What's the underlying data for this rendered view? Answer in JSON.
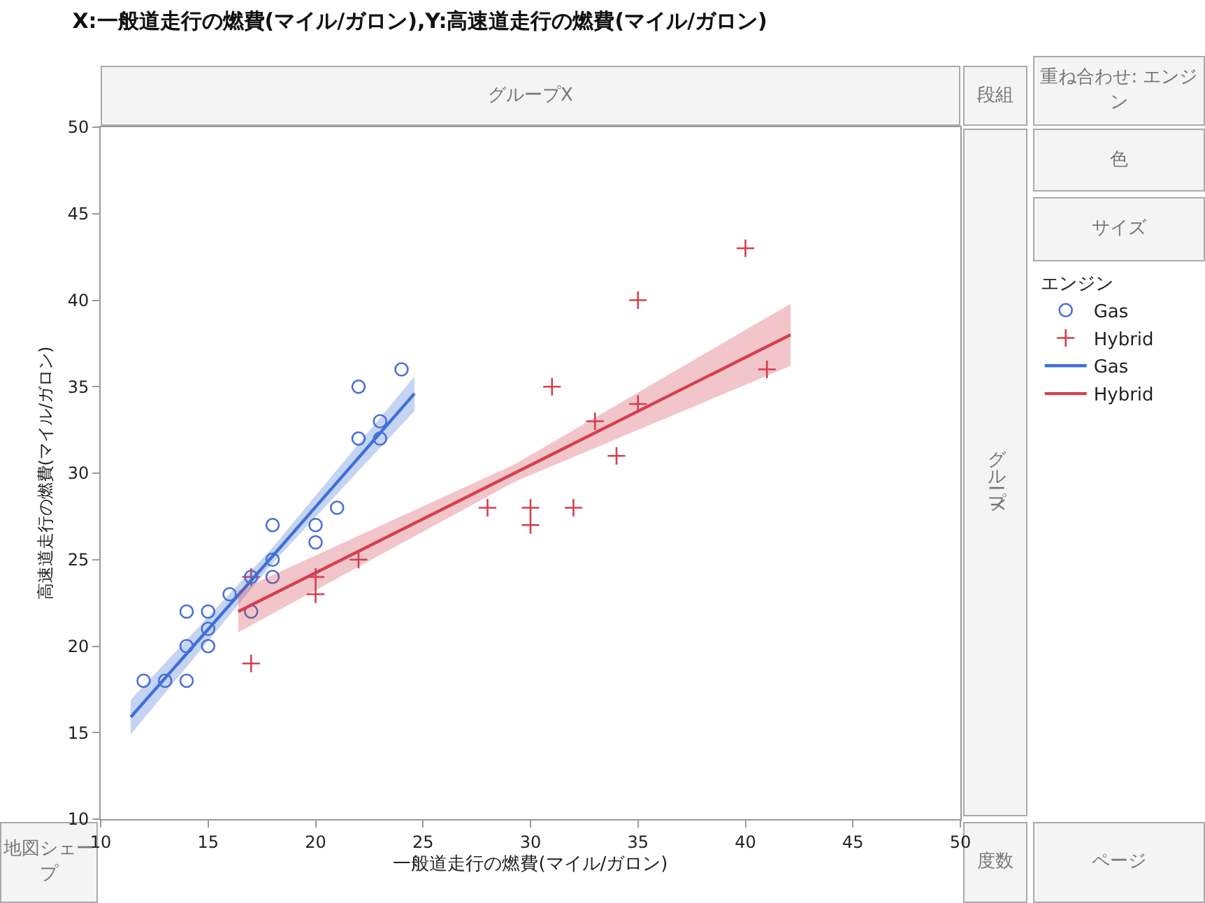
{
  "chart_data": {
    "type": "scatter",
    "title": "X:一般道走行の燃費(マイル/ガロン),Y:高速道走行の燃費(マイル/ガロン)",
    "xlabel": "一般道走行の燃費(マイル/ガロン)",
    "ylabel": "高速道走行の燃費(マイル/ガロン)",
    "legend_title": "エンジン",
    "legend": "right",
    "grid": false,
    "xlim": [
      10,
      50
    ],
    "xticks": [
      10,
      15,
      20,
      25,
      30,
      35,
      40,
      45,
      50
    ],
    "ylim": [
      10,
      50
    ],
    "yticks": [
      10,
      15,
      20,
      25,
      30,
      35,
      40,
      45,
      50
    ],
    "annotations": [
      "グループX",
      "段組",
      "重ね合わせ: エンジン",
      "色",
      "サイズ",
      "グループY",
      "地図シェープ",
      "度数",
      "ページ"
    ],
    "series": [
      {
        "name": "Gas",
        "marker": "circle",
        "color": "#4a6fd6",
        "x": [
          12,
          13,
          14,
          14,
          15,
          15,
          14,
          15,
          17,
          16,
          18,
          17,
          18,
          20,
          20,
          18,
          21,
          24,
          22,
          23,
          22,
          23
        ],
        "values": [
          18,
          18,
          18,
          20,
          20,
          21,
          22,
          22,
          22,
          23,
          24,
          24,
          25,
          26,
          27,
          27,
          28,
          36,
          35,
          33,
          32,
          32
        ]
      },
      {
        "name": "Hybrid",
        "marker": "cross",
        "color": "#d4404f",
        "x": [
          40,
          35,
          41,
          31,
          35,
          33,
          34,
          28,
          30,
          30,
          32,
          22,
          17,
          20,
          20,
          17
        ],
        "values": [
          43,
          40,
          36,
          35,
          34,
          33,
          31,
          28,
          28,
          27,
          28,
          25,
          19,
          24,
          23,
          24
        ]
      },
      {
        "name": "Gas",
        "type": "line",
        "line_style": "solid",
        "color": "#3f6fd8",
        "x": [
          11.4,
          18,
          24.6
        ],
        "values": [
          15.9,
          25.2,
          34.6
        ],
        "lower": [
          14.9,
          24.8,
          33.6
        ],
        "upper": [
          16.9,
          25.7,
          35.6
        ]
      },
      {
        "name": "Hybrid",
        "type": "line",
        "line_style": "solid",
        "color": "#d4404f",
        "x": [
          16.4,
          29.25,
          42.1
        ],
        "values": [
          22,
          30,
          38
        ],
        "lower": [
          20.8,
          29.5,
          36.2
        ],
        "upper": [
          23.2,
          30.5,
          39.8
        ]
      }
    ]
  }
}
